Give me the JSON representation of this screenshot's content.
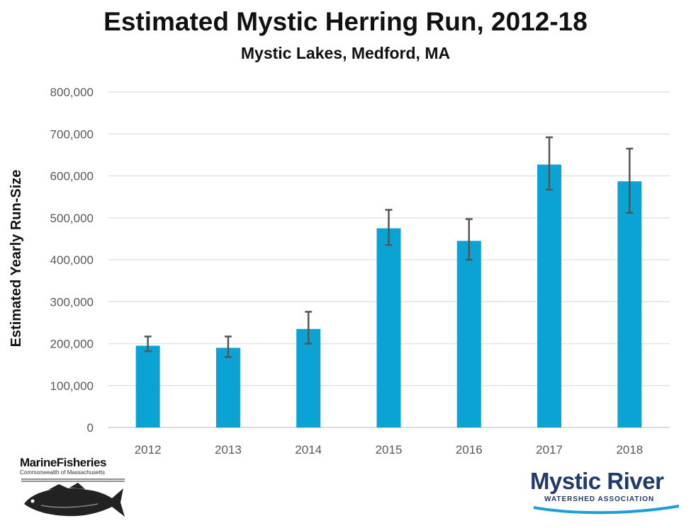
{
  "chart_data": {
    "type": "bar",
    "title": "Estimated Mystic Herring Run, 2012-18",
    "subtitle": "Mystic Lakes, Medford, MA",
    "xlabel": "",
    "ylabel": "Estimated Yearly Run-Size",
    "categories": [
      "2012",
      "2013",
      "2014",
      "2015",
      "2016",
      "2017",
      "2018"
    ],
    "values": [
      195000,
      190000,
      235000,
      475000,
      445000,
      627000,
      587000
    ],
    "error_low": [
      182000,
      168000,
      200000,
      435000,
      400000,
      567000,
      512000
    ],
    "error_high": [
      217000,
      217000,
      276000,
      519000,
      497000,
      692000,
      665000
    ],
    "ylim": [
      0,
      800000
    ],
    "yticks": [
      0,
      100000,
      200000,
      300000,
      400000,
      500000,
      600000,
      700000,
      800000
    ],
    "ytick_labels": [
      "0",
      "100,000",
      "200,000",
      "300,000",
      "400,000",
      "500,000",
      "600,000",
      "700,000",
      "800,000"
    ],
    "grid": true,
    "bar_color": "#0aa3d4",
    "error_color": "#555555"
  },
  "logos": {
    "left": {
      "name": "MarineFisheries",
      "sub": "Commonwealth of Massachusetts"
    },
    "right": {
      "name": "Mystic River",
      "sub": "WATERSHED ASSOCIATION"
    }
  }
}
